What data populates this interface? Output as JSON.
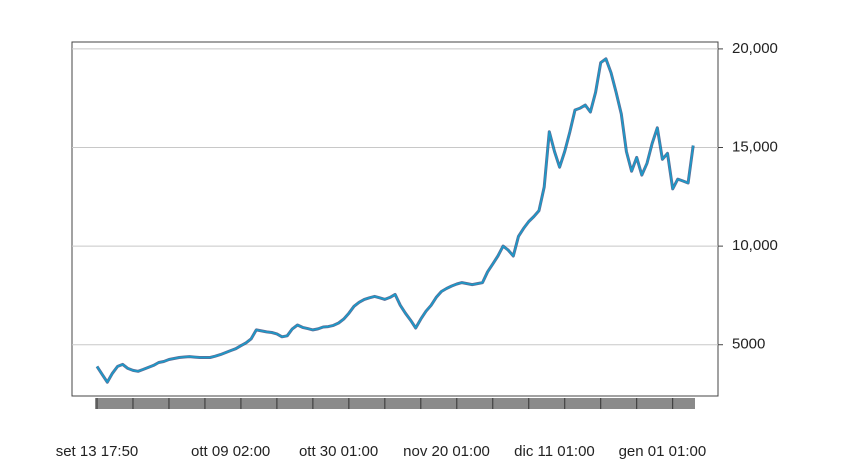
{
  "chart_data": {
    "type": "line",
    "color": "#1a9bc9",
    "grid": true,
    "ylim": [
      2400,
      20350
    ],
    "yticks": [
      5000,
      {
        "value": 10000,
        "label": "10,000"
      },
      {
        "value": 15000,
        "label": "15,000"
      },
      {
        "value": 20000,
        "label": "20,000"
      }
    ],
    "categories": [
      "set 13 17:50",
      null,
      null,
      null,
      null,
      null,
      null,
      null,
      null,
      null,
      null,
      null,
      null,
      null,
      null,
      null,
      null,
      null,
      null,
      null,
      null,
      null,
      null,
      null,
      null,
      null,
      "ott 09 02:00",
      null,
      null,
      null,
      null,
      null,
      null,
      null,
      null,
      null,
      null,
      null,
      null,
      null,
      null,
      null,
      null,
      null,
      null,
      null,
      null,
      "ott 30 01:00",
      null,
      null,
      null,
      null,
      null,
      null,
      null,
      null,
      null,
      null,
      null,
      null,
      null,
      null,
      null,
      null,
      null,
      null,
      null,
      null,
      "nov 20 01:00",
      null,
      null,
      null,
      null,
      null,
      null,
      null,
      null,
      null,
      null,
      null,
      null,
      null,
      null,
      null,
      null,
      null,
      null,
      null,
      null,
      "dic 11 01:00",
      null,
      null,
      null,
      null,
      null,
      null,
      null,
      null,
      null,
      null,
      null,
      null,
      null,
      null,
      null,
      null,
      null,
      null,
      null,
      null,
      "gen 01 01:00",
      null,
      null,
      null,
      null,
      null,
      null
    ],
    "values": [
      3900,
      3500,
      3100,
      3550,
      3900,
      4000,
      3800,
      3700,
      3650,
      3750,
      3850,
      3950,
      4100,
      4150,
      4250,
      4300,
      4350,
      4380,
      4400,
      4370,
      4350,
      4350,
      4350,
      4420,
      4500,
      4600,
      4700,
      4800,
      4950,
      5100,
      5300,
      5750,
      5700,
      5650,
      5620,
      5550,
      5400,
      5450,
      5800,
      6000,
      5880,
      5820,
      5750,
      5800,
      5900,
      5920,
      5980,
      6100,
      6300,
      6600,
      6950,
      7150,
      7300,
      7380,
      7450,
      7380,
      7300,
      7400,
      7550,
      7000,
      6600,
      6250,
      5850,
      6300,
      6700,
      7000,
      7400,
      7700,
      7850,
      7980,
      8080,
      8150,
      8100,
      8050,
      8100,
      8150,
      8700,
      9100,
      9500,
      10000,
      9800,
      9500,
      10500,
      10900,
      11250,
      11500,
      11800,
      13000,
      15800,
      14800,
      14000,
      14800,
      15800,
      16900,
      17000,
      17150,
      16800,
      17800,
      19300,
      19500,
      18800,
      17800,
      16700,
      14800,
      13800,
      14500,
      13600,
      14200,
      15200,
      16000,
      14400,
      14700,
      12900,
      13400,
      13300,
      13200,
      15100
    ]
  }
}
